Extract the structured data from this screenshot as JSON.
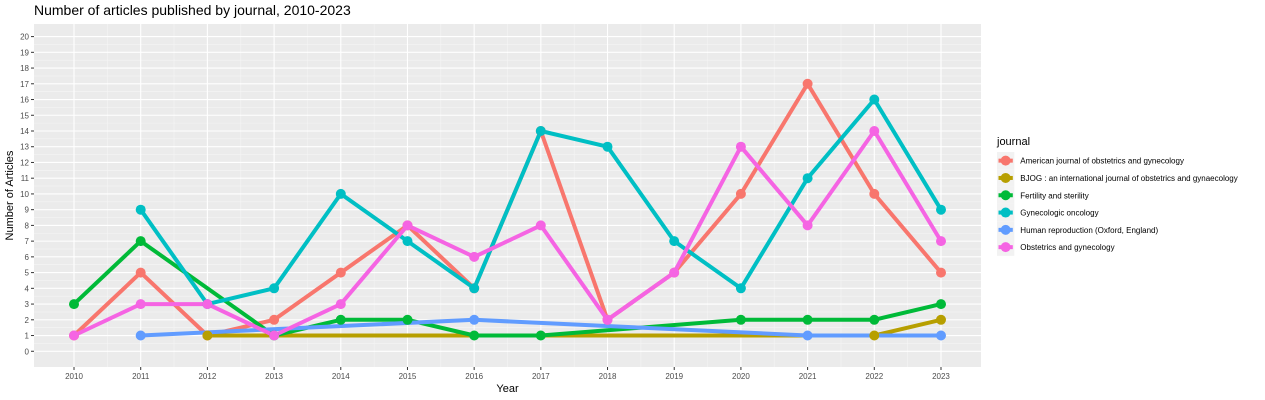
{
  "chart_data": {
    "type": "line",
    "title": "Number of articles published by journal, 2010-2023",
    "xlabel": "Year",
    "ylabel": "Number of Articles",
    "xlim": [
      2010,
      2023
    ],
    "ylim": [
      0,
      20
    ],
    "x_ticks": [
      "2010",
      "2011",
      "2012",
      "2013",
      "2014",
      "2015",
      "2016",
      "2017",
      "2018",
      "2019",
      "2020",
      "2021",
      "2022",
      "2023"
    ],
    "y_ticks": [
      "0",
      "1",
      "2",
      "3",
      "4",
      "5",
      "6",
      "7",
      "8",
      "9",
      "10",
      "11",
      "12",
      "13",
      "14",
      "15",
      "16",
      "17",
      "18",
      "19",
      "20"
    ],
    "grid": true,
    "legend": {
      "title": "journal",
      "position": "right"
    },
    "series": [
      {
        "name": "American journal of obstetrics and gynecology",
        "color": "#F8766D",
        "points": [
          [
            2010,
            1
          ],
          [
            2011,
            5
          ],
          [
            2012,
            1
          ],
          [
            2013,
            2
          ],
          [
            2014,
            5
          ],
          [
            2015,
            8
          ],
          [
            2016,
            4
          ],
          [
            2017,
            14
          ],
          [
            2018,
            2
          ],
          [
            2019,
            5
          ],
          [
            2020,
            10
          ],
          [
            2021,
            17
          ],
          [
            2022,
            10
          ],
          [
            2023,
            5
          ]
        ]
      },
      {
        "name": "BJOG : an international journal of obstetrics and gynaecology",
        "color": "#B79F00",
        "points": [
          [
            2012,
            1
          ],
          [
            2022,
            1
          ],
          [
            2023,
            2
          ]
        ]
      },
      {
        "name": "Fertility and sterility",
        "color": "#00BA38",
        "points": [
          [
            2010,
            3
          ],
          [
            2011,
            7
          ],
          [
            2013,
            1
          ],
          [
            2014,
            2
          ],
          [
            2015,
            2
          ],
          [
            2016,
            1
          ],
          [
            2017,
            1
          ],
          [
            2020,
            2
          ],
          [
            2021,
            2
          ],
          [
            2022,
            2
          ],
          [
            2023,
            3
          ]
        ]
      },
      {
        "name": "Gynecologic oncology",
        "color": "#00BFC4",
        "points": [
          [
            2011,
            9
          ],
          [
            2012,
            3
          ],
          [
            2013,
            4
          ],
          [
            2014,
            10
          ],
          [
            2015,
            7
          ],
          [
            2016,
            4
          ],
          [
            2017,
            14
          ],
          [
            2018,
            13
          ],
          [
            2019,
            7
          ],
          [
            2020,
            4
          ],
          [
            2021,
            11
          ],
          [
            2022,
            16
          ],
          [
            2023,
            9
          ]
        ]
      },
      {
        "name": "Human reproduction (Oxford, England)",
        "color": "#619CFF",
        "points": [
          [
            2011,
            1
          ],
          [
            2016,
            2
          ],
          [
            2021,
            1
          ],
          [
            2023,
            1
          ]
        ]
      },
      {
        "name": "Obstetrics and gynecology",
        "color": "#F564E3",
        "points": [
          [
            2010,
            1
          ],
          [
            2011,
            3
          ],
          [
            2012,
            3
          ],
          [
            2013,
            1
          ],
          [
            2014,
            3
          ],
          [
            2015,
            8
          ],
          [
            2016,
            6
          ],
          [
            2017,
            8
          ],
          [
            2018,
            2
          ],
          [
            2019,
            5
          ],
          [
            2020,
            13
          ],
          [
            2021,
            8
          ],
          [
            2022,
            14
          ],
          [
            2023,
            7
          ]
        ]
      }
    ]
  }
}
